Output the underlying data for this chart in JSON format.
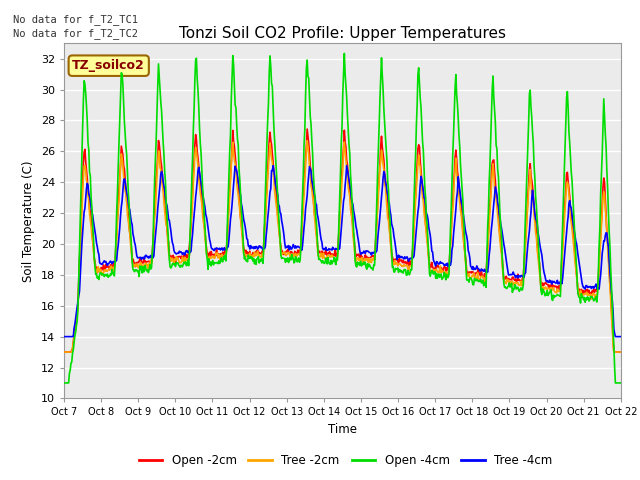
{
  "title": "Tonzi Soil CO2 Profile: Upper Temperatures",
  "ylabel": "Soil Temperature (C)",
  "xlabel": "Time",
  "ylim": [
    10,
    33
  ],
  "yticks": [
    10,
    12,
    14,
    16,
    18,
    20,
    22,
    24,
    26,
    28,
    30,
    32
  ],
  "xtick_labels": [
    "Oct 7",
    "Oct 8",
    "Oct 9",
    "Oct 10",
    "Oct 11",
    "Oct 12",
    "Oct 13",
    "Oct 14",
    "Oct 15",
    "Oct 16",
    "Oct 17",
    "Oct 18",
    "Oct 19",
    "Oct 20",
    "Oct 21",
    "Oct 22"
  ],
  "no_data_text1": "No data for f_T2_TC1",
  "no_data_text2": "No data for f_T2_TC2",
  "legend_box_label": "TZ_soilco2",
  "legend_box_color": "#FFFF99",
  "legend_box_edge": "#996600",
  "legend_box_text": "#880000",
  "colors": {
    "open_2cm": "#FF0000",
    "tree_2cm": "#FFA500",
    "open_4cm": "#00DD00",
    "tree_4cm": "#0000FF"
  },
  "legend_labels": [
    "Open -2cm",
    "Tree -2cm",
    "Open -4cm",
    "Tree -4cm"
  ],
  "plot_bg": "#EBEBEB",
  "n_days": 15,
  "samples_per_day": 48
}
